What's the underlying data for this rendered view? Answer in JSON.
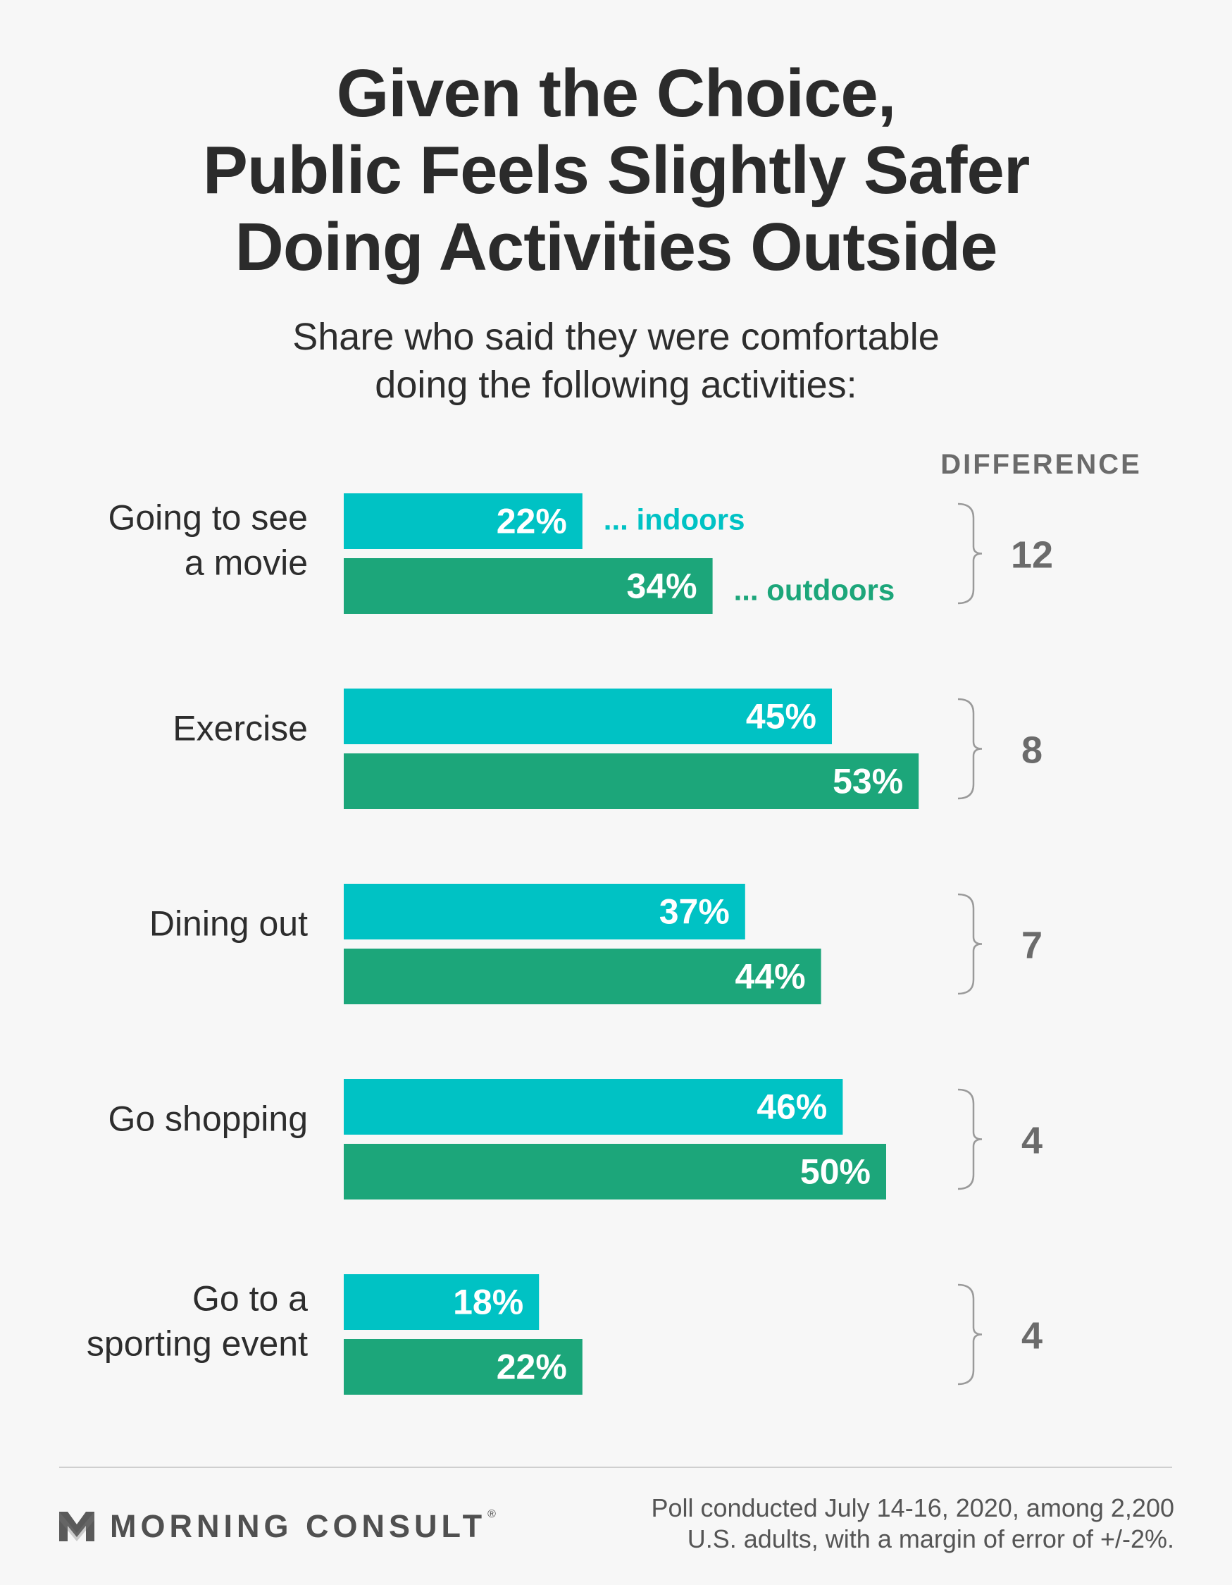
{
  "title_lines": [
    "Given the Choice,",
    "Public Feels Slightly Safer",
    "Doing Activities Outside"
  ],
  "subtitle_lines": [
    "Share who said they were comfortable",
    "doing the following activities:"
  ],
  "colors": {
    "indoors": "#00c2c4",
    "outdoors": "#1ca67a",
    "text": "#2d2d2d",
    "difference": "#6b6b6b",
    "bracket": "#9a9a9a"
  },
  "chart_data": {
    "type": "bar",
    "orientation": "horizontal",
    "categories": [
      [
        "Going to see",
        "a movie"
      ],
      [
        "Exercise"
      ],
      [
        "Dining out"
      ],
      [
        "Go shopping"
      ],
      [
        "Go to a",
        "sporting event"
      ]
    ],
    "series": [
      {
        "name": "... indoors",
        "color": "#00c2c4",
        "values": [
          22,
          45,
          37,
          46,
          18
        ],
        "labels": [
          "22%",
          "45%",
          "37%",
          "46%",
          "18%"
        ]
      },
      {
        "name": "... outdoors",
        "color": "#1ca67a",
        "values": [
          34,
          53,
          44,
          50,
          22
        ],
        "labels": [
          "34%",
          "53%",
          "44%",
          "50%",
          "22%"
        ]
      }
    ],
    "difference_header": "DIFFERENCE",
    "differences": [
      "12",
      "8",
      "7",
      "4",
      "4"
    ],
    "value_unit": "%",
    "xlim": [
      0,
      53
    ],
    "grid": false
  },
  "footer": {
    "logo_text": "MORNING CONSULT",
    "logo_mark": "®",
    "note_lines": [
      "Poll conducted July 14-16, 2020, among 2,200",
      "U.S. adults, with a margin of error of +/-2%."
    ]
  }
}
